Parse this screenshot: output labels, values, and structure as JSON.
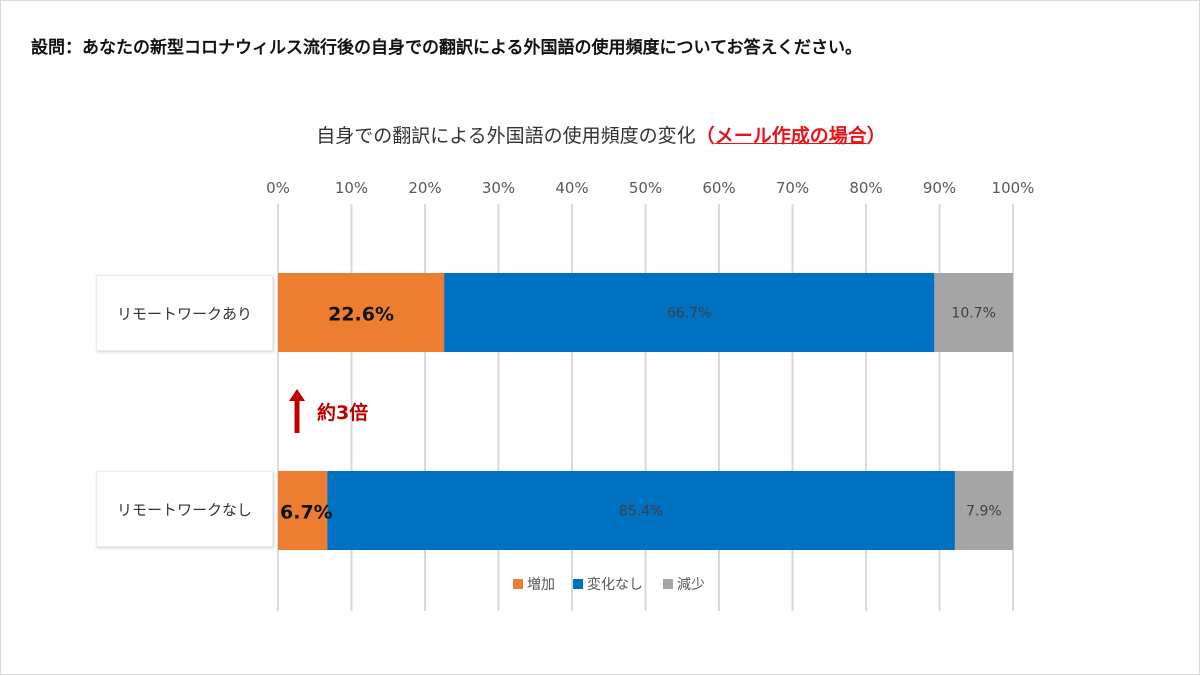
{
  "question": "設問：あなたの新型コロナウィルス流行後の自身での翻訳による外国語の使用頻度についてお答えください。",
  "chart_data": {
    "type": "bar",
    "orientation": "horizontal",
    "stacked": true,
    "title_main": "自身での翻訳による外国語の使用頻度の変化",
    "title_open": "（",
    "title_highlight": "メール作成の場合",
    "title_close": "）",
    "categories": [
      "リモートワークあり",
      "リモートワークなし"
    ],
    "series": [
      {
        "name": "増加",
        "values": [
          22.6,
          6.7
        ],
        "labels": [
          "22.6%",
          "6.7%"
        ],
        "color": "#ed7d31"
      },
      {
        "name": "変化なし",
        "values": [
          66.7,
          85.4
        ],
        "labels": [
          "66.7%",
          "85.4%"
        ],
        "color": "#0070c0"
      },
      {
        "name": "減少",
        "values": [
          10.7,
          7.9
        ],
        "labels": [
          "10.7%",
          "7.9%"
        ],
        "color": "#a5a5a5"
      }
    ],
    "xlim": [
      0,
      100
    ],
    "ticks": [
      "0%",
      "10%",
      "20%",
      "30%",
      "40%",
      "50%",
      "60%",
      "70%",
      "80%",
      "90%",
      "100%"
    ],
    "grid": true,
    "legend_position": "bottom",
    "annotation": "約3倍",
    "annotation_color": "#c00000"
  }
}
